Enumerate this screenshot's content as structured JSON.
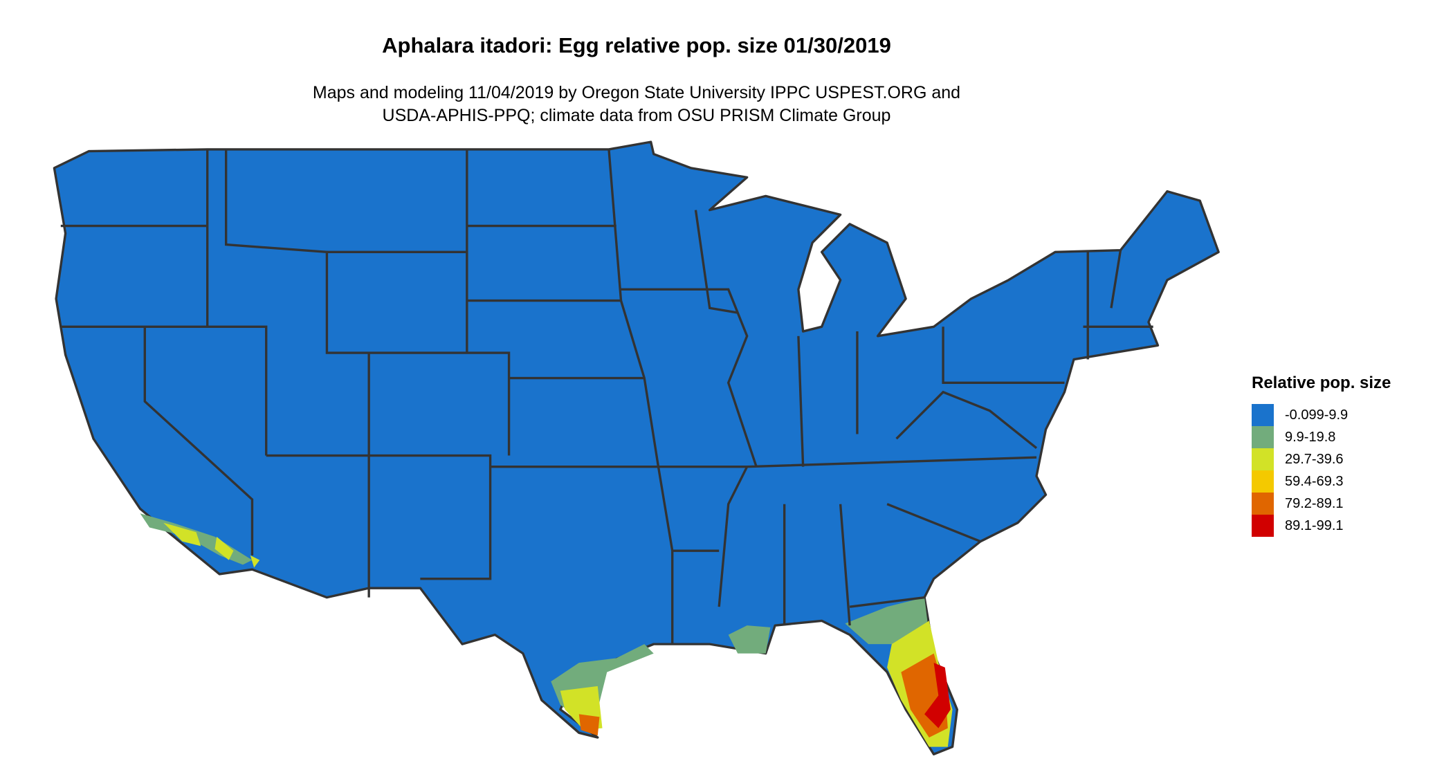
{
  "title": "Aphalara itadori: Egg relative pop. size 01/30/2019",
  "subtitle_lines": [
    "Maps and modeling 11/04/2019 by Oregon State University IPPC USPEST.ORG and",
    "USDA-APHIS-PPQ; climate data from OSU PRISM Climate Group"
  ],
  "legend": {
    "title": "Relative pop. size",
    "items": [
      {
        "label": "-0.099-9.9",
        "color": "#1A73CC"
      },
      {
        "label": "9.9-19.8",
        "color": "#72AC7C"
      },
      {
        "label": "29.7-39.6",
        "color": "#D2E227"
      },
      {
        "label": "59.4-69.3",
        "color": "#F4C900"
      },
      {
        "label": "79.2-89.1",
        "color": "#E06600"
      },
      {
        "label": "89.1-99.1",
        "color": "#D10000"
      }
    ]
  },
  "map": {
    "region": "Contiguous United States",
    "border_color": "#333333"
  }
}
